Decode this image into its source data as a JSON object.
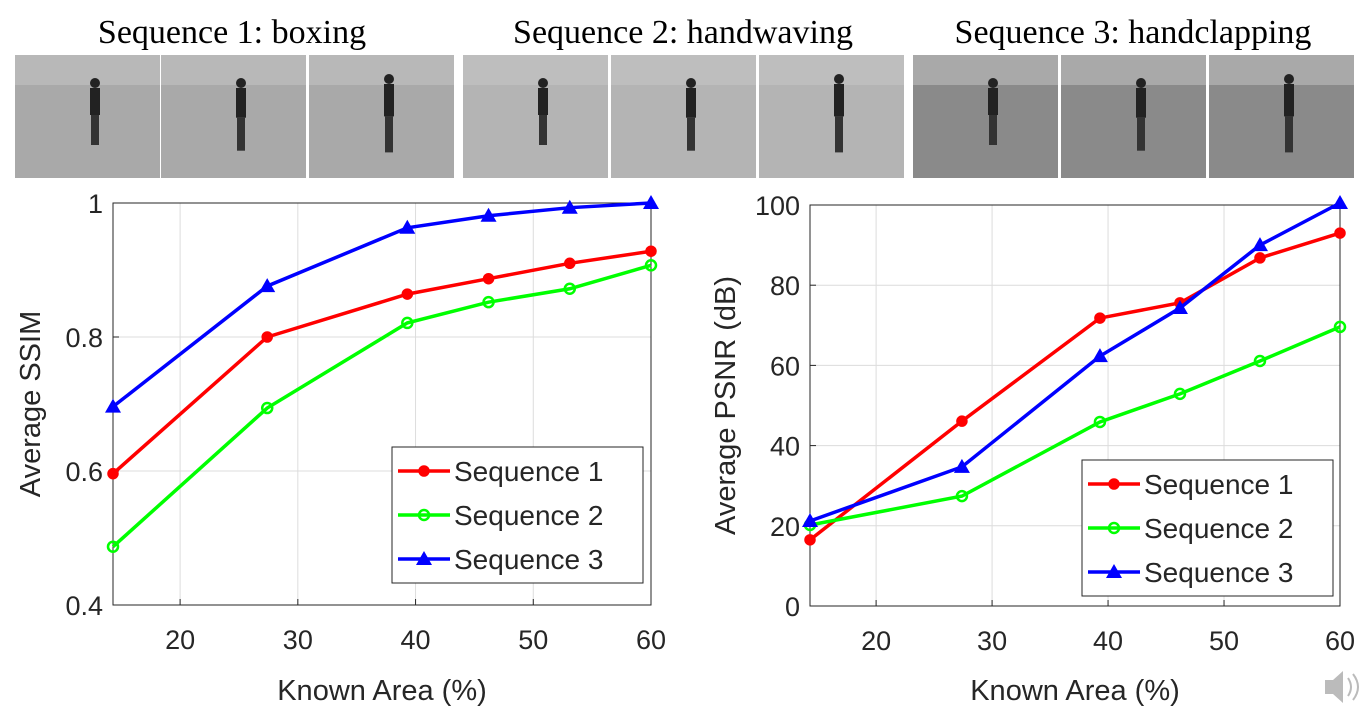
{
  "sequences": [
    {
      "title": "Sequence 1: boxing"
    },
    {
      "title": "Sequence 2: handwaving"
    },
    {
      "title": "Sequence 3: handclapping"
    }
  ],
  "chart_data": [
    {
      "type": "line",
      "xlabel": "Known Area (%)",
      "ylabel": "Average SSIM",
      "x": [
        14.3,
        27.4,
        39.3,
        46.2,
        53.1,
        60
      ],
      "xlim": [
        14.3,
        60
      ],
      "xticks": [
        20,
        30,
        40,
        50,
        60
      ],
      "ylim": [
        0.4,
        1
      ],
      "yticks": [
        0.4,
        0.6,
        0.8,
        1
      ],
      "grid": true,
      "legend": "lower right",
      "series": [
        {
          "name": "Sequence 1",
          "color": "#ff0000",
          "marker": "circle",
          "values": [
            0.596,
            0.8,
            0.864,
            0.887,
            0.91,
            0.928
          ]
        },
        {
          "name": "Sequence 2",
          "color": "#00ff00",
          "marker": "open-circle",
          "values": [
            0.487,
            0.694,
            0.821,
            0.852,
            0.872,
            0.907
          ]
        },
        {
          "name": "Sequence 3",
          "color": "#0000ff",
          "marker": "triangle",
          "values": [
            0.696,
            0.876,
            0.963,
            0.981,
            0.993,
            1.0
          ]
        }
      ]
    },
    {
      "type": "line",
      "xlabel": "Known Area (%)",
      "ylabel": "Average PSNR (dB)",
      "x": [
        14.3,
        27.4,
        39.3,
        46.2,
        53.1,
        60
      ],
      "xlim": [
        14.3,
        60
      ],
      "xticks": [
        20,
        30,
        40,
        50,
        60
      ],
      "ylim": [
        0,
        100
      ],
      "yticks": [
        0,
        20,
        40,
        60,
        80,
        100
      ],
      "grid": true,
      "legend": "lower right",
      "series": [
        {
          "name": "Sequence 1",
          "color": "#ff0000",
          "marker": "circle",
          "values": [
            16.5,
            46.1,
            71.8,
            75.6,
            86.8,
            93.0
          ]
        },
        {
          "name": "Sequence 2",
          "color": "#00ff00",
          "marker": "open-circle",
          "values": [
            20.2,
            27.4,
            45.9,
            52.9,
            61.1,
            69.6
          ]
        },
        {
          "name": "Sequence 3",
          "color": "#0000ff",
          "marker": "triangle",
          "values": [
            21.2,
            34.7,
            62.3,
            74.3,
            90.0,
            100.5
          ]
        }
      ]
    }
  ]
}
